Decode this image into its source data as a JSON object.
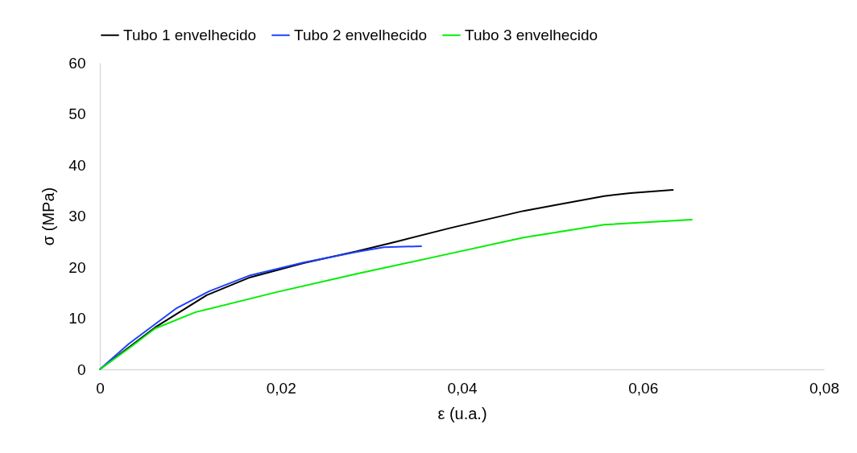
{
  "chart_data": {
    "type": "line",
    "xlabel": "ε (u.a.)",
    "ylabel": "σ (MPa)",
    "xlim": [
      0,
      0.08
    ],
    "xticks": [
      {
        "value": 0,
        "label": "0"
      },
      {
        "value": 0.02,
        "label": "0,02"
      },
      {
        "value": 0.04,
        "label": "0,04"
      },
      {
        "value": 0.06,
        "label": "0,06"
      },
      {
        "value": 0.08,
        "label": "0,08"
      }
    ],
    "ylim": [
      0,
      60
    ],
    "yticks": [
      0,
      10,
      20,
      30,
      40,
      50,
      60
    ],
    "grid": false,
    "legend": "top",
    "marker": "none",
    "line_style": "solid",
    "series": [
      {
        "name": "Tubo 1 envelhecido",
        "color": "#000000",
        "x": [
          0,
          0.0061,
          0.0118,
          0.0166,
          0.0225,
          0.0284,
          0.0328,
          0.0388,
          0.0468,
          0.0557,
          0.0586,
          0.0633
        ],
        "values": [
          0,
          8.2,
          14.5,
          18.0,
          20.8,
          23.1,
          25.0,
          27.7,
          31.0,
          33.9,
          34.5,
          35.1
        ]
      },
      {
        "name": "Tubo 2 envelhecido",
        "color": "#1f3fff",
        "x": [
          0,
          0.0032,
          0.0085,
          0.0121,
          0.0166,
          0.0225,
          0.0284,
          0.0314,
          0.0355
        ],
        "values": [
          0,
          5.0,
          12.0,
          15.3,
          18.4,
          20.9,
          23.0,
          23.9,
          24.1
        ]
      },
      {
        "name": "Tubo 3 envelhecido",
        "color": "#00ee00",
        "x": [
          0,
          0.0032,
          0.0061,
          0.0106,
          0.0195,
          0.0284,
          0.0388,
          0.0468,
          0.0557,
          0.0654
        ],
        "values": [
          0,
          4.1,
          8.0,
          11.2,
          15.1,
          18.7,
          22.7,
          25.8,
          28.3,
          29.3
        ]
      }
    ]
  }
}
